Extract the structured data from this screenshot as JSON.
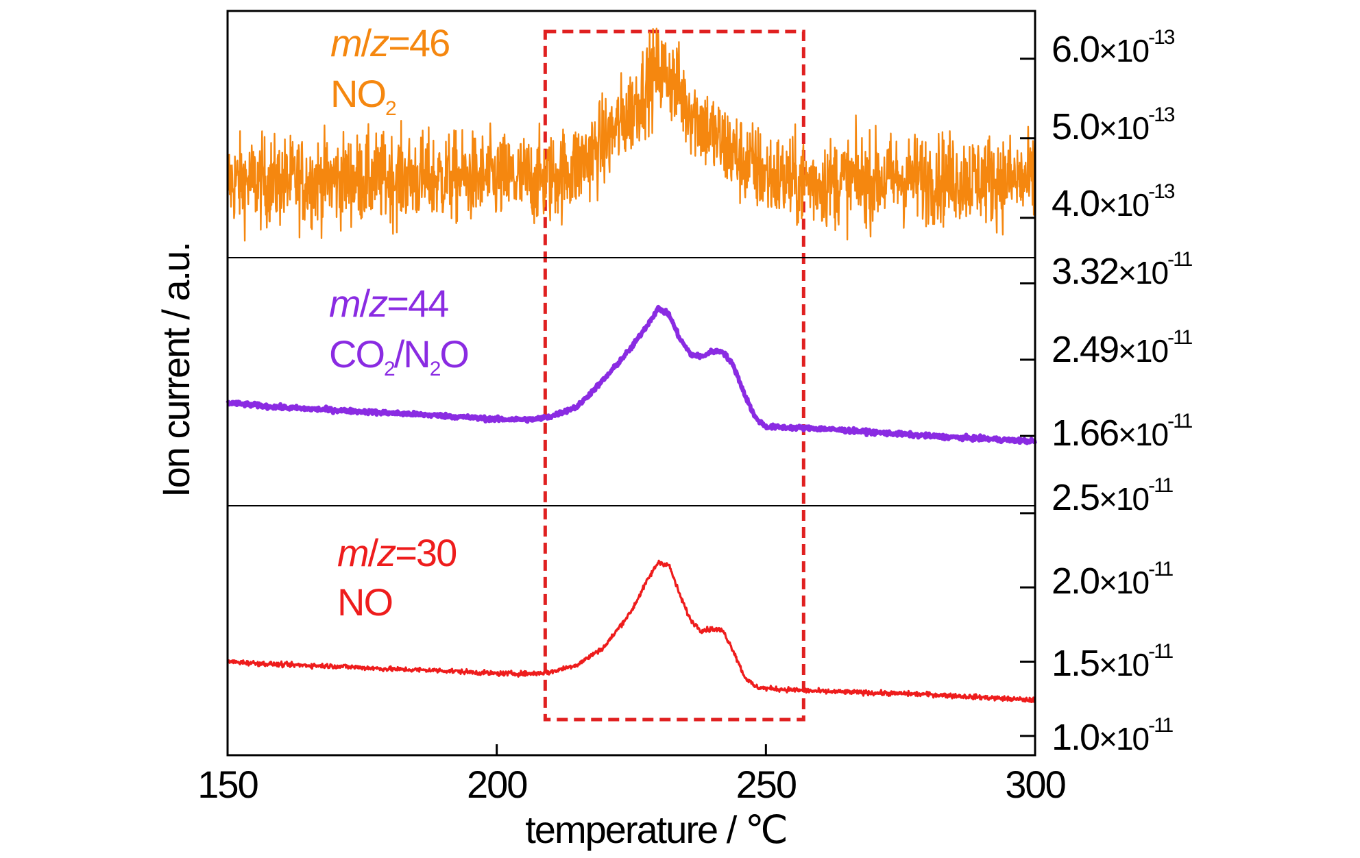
{
  "chart_data": {
    "type": "line",
    "xlabel": "temperature / ℃",
    "ylabel": "Ion current / a.u.",
    "xlim": [
      150,
      300
    ],
    "x_ticks": [
      "150",
      "200",
      "250",
      "300"
    ],
    "highlight_region": {
      "x": [
        209,
        257
      ],
      "style": "dashed",
      "color": "#e02020"
    },
    "panels": [
      {
        "label_mz": "46",
        "label_species": [
          "NO",
          "2",
          ""
        ],
        "color": "#f5870f",
        "ylim": [
          3.5e-13,
          6.6e-13
        ],
        "y_ticks": [
          {
            "value": 6e-13,
            "mantissa": "6.0",
            "exp": "-13"
          },
          {
            "value": 5e-13,
            "mantissa": "5.0",
            "exp": "-13"
          },
          {
            "value": 4e-13,
            "mantissa": "4.0",
            "exp": "-13"
          }
        ],
        "noise": 2.8e-14,
        "points": [
          [
            150,
            4.45e-13
          ],
          [
            160,
            4.45e-13
          ],
          [
            170,
            4.48e-13
          ],
          [
            180,
            4.5e-13
          ],
          [
            190,
            4.5e-13
          ],
          [
            200,
            4.5e-13
          ],
          [
            207,
            4.48e-13
          ],
          [
            210,
            4.5e-13
          ],
          [
            215,
            4.65e-13
          ],
          [
            220,
            4.95e-13
          ],
          [
            225,
            5.35e-13
          ],
          [
            228,
            5.7e-13
          ],
          [
            230,
            5.85e-13
          ],
          [
            232,
            5.8e-13
          ],
          [
            235,
            5.45e-13
          ],
          [
            240,
            5.05e-13
          ],
          [
            245,
            4.75e-13
          ],
          [
            250,
            4.55e-13
          ],
          [
            255,
            4.45e-13
          ],
          [
            260,
            4.45e-13
          ],
          [
            270,
            4.48e-13
          ],
          [
            280,
            4.5e-13
          ],
          [
            290,
            4.5e-13
          ],
          [
            300,
            4.45e-13
          ]
        ]
      },
      {
        "label_mz": "44",
        "label_species": [
          "CO",
          "2",
          "/N",
          "2",
          "O"
        ],
        "color": "#8a2be2",
        "ylim": [
          9e-12,
          3.6e-11
        ],
        "y_ticks": [
          {
            "value": 3.32e-11,
            "mantissa": "3.32",
            "exp": "-11"
          },
          {
            "value": 2.49e-11,
            "mantissa": "2.49",
            "exp": "-11"
          },
          {
            "value": 1.66e-11,
            "mantissa": "1.66",
            "exp": "-11"
          }
        ],
        "noise": 1.2e-13,
        "points": [
          [
            150,
            2.02e-11
          ],
          [
            160,
            1.97e-11
          ],
          [
            170,
            1.94e-11
          ],
          [
            180,
            1.91e-11
          ],
          [
            190,
            1.88e-11
          ],
          [
            200,
            1.84e-11
          ],
          [
            207,
            1.84e-11
          ],
          [
            210,
            1.87e-11
          ],
          [
            215,
            1.98e-11
          ],
          [
            220,
            2.28e-11
          ],
          [
            225,
            2.62e-11
          ],
          [
            228,
            2.87e-11
          ],
          [
            230,
            3.05e-11
          ],
          [
            232,
            2.98e-11
          ],
          [
            234,
            2.72e-11
          ],
          [
            236,
            2.55e-11
          ],
          [
            238,
            2.52e-11
          ],
          [
            240,
            2.58e-11
          ],
          [
            242,
            2.58e-11
          ],
          [
            244,
            2.42e-11
          ],
          [
            246,
            2.12e-11
          ],
          [
            248,
            1.86e-11
          ],
          [
            250,
            1.76e-11
          ],
          [
            255,
            1.75e-11
          ],
          [
            260,
            1.74e-11
          ],
          [
            270,
            1.7e-11
          ],
          [
            280,
            1.66e-11
          ],
          [
            290,
            1.63e-11
          ],
          [
            300,
            1.6e-11
          ]
        ]
      },
      {
        "label_mz": "30",
        "label_species": [
          "NO"
        ],
        "color": "#ee1c1c",
        "ylim": [
          8.7e-12,
          2.55e-11
        ],
        "y_ticks": [
          {
            "value": 2.5e-11,
            "mantissa": "2.5",
            "exp": "-11"
          },
          {
            "value": 2e-11,
            "mantissa": "2.0",
            "exp": "-11"
          },
          {
            "value": 1.5e-11,
            "mantissa": "1.5",
            "exp": "-11"
          },
          {
            "value": 1e-11,
            "mantissa": "1.0",
            "exp": "-11"
          }
        ],
        "noise": 8e-14,
        "points": [
          [
            150,
            1.5e-11
          ],
          [
            160,
            1.48e-11
          ],
          [
            170,
            1.47e-11
          ],
          [
            180,
            1.45e-11
          ],
          [
            190,
            1.44e-11
          ],
          [
            200,
            1.42e-11
          ],
          [
            207,
            1.42e-11
          ],
          [
            210,
            1.43e-11
          ],
          [
            215,
            1.48e-11
          ],
          [
            220,
            1.6e-11
          ],
          [
            225,
            1.84e-11
          ],
          [
            228,
            2.05e-11
          ],
          [
            230,
            2.17e-11
          ],
          [
            232,
            2.15e-11
          ],
          [
            234,
            1.95e-11
          ],
          [
            236,
            1.78e-11
          ],
          [
            238,
            1.71e-11
          ],
          [
            240,
            1.72e-11
          ],
          [
            242,
            1.71e-11
          ],
          [
            244,
            1.57e-11
          ],
          [
            246,
            1.4e-11
          ],
          [
            248,
            1.33e-11
          ],
          [
            250,
            1.32e-11
          ],
          [
            260,
            1.3e-11
          ],
          [
            270,
            1.29e-11
          ],
          [
            280,
            1.28e-11
          ],
          [
            290,
            1.26e-11
          ],
          [
            300,
            1.24e-11
          ]
        ]
      }
    ]
  }
}
